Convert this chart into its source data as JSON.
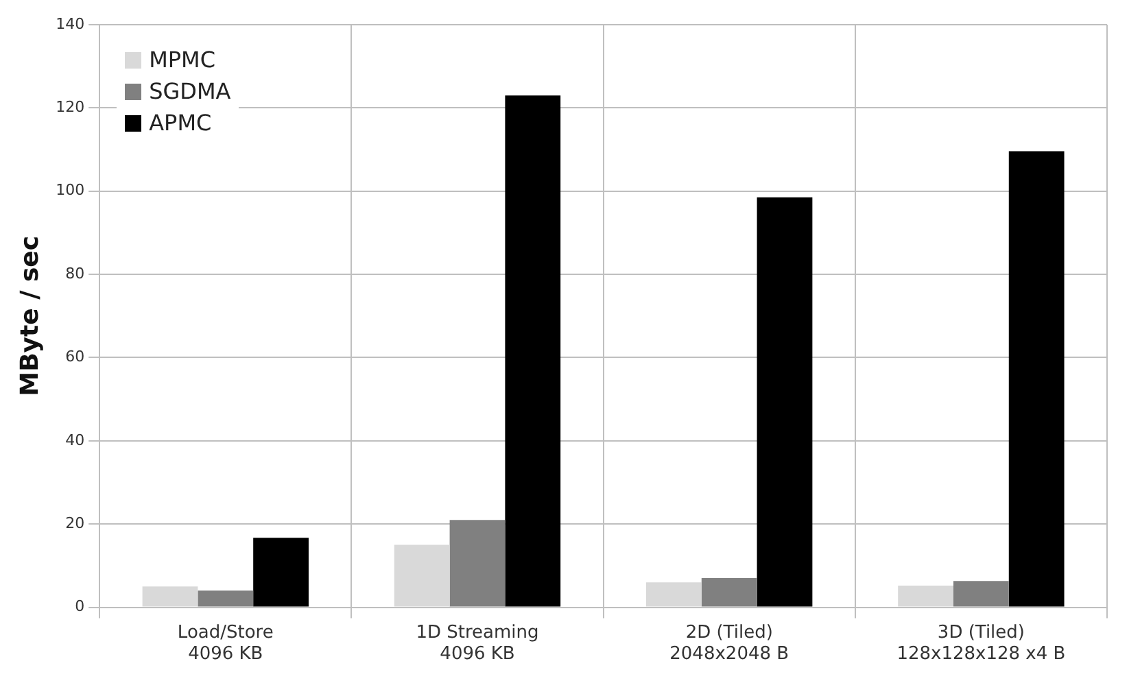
{
  "chart_data": {
    "type": "bar",
    "ylabel": "MByte / sec",
    "categories": [
      "Load/Store\n4096 KB",
      "1D Streaming\n4096 KB",
      "2D (Tiled)\n2048x2048 B",
      "3D (Tiled)\n128x128x128 x4 B"
    ],
    "series": [
      {
        "name": "MPMC",
        "color": "#d9d9d9",
        "values": [
          5,
          15,
          6,
          5.2
        ]
      },
      {
        "name": "SGDMA",
        "color": "#808080",
        "values": [
          4,
          21,
          7,
          6.3
        ]
      },
      {
        "name": "APMC",
        "color": "#000000",
        "values": [
          16.7,
          123,
          98.5,
          109.6
        ]
      }
    ],
    "ylim": [
      0,
      140
    ],
    "yticks": [
      0,
      20,
      40,
      60,
      80,
      100,
      120,
      140
    ],
    "grid": true,
    "legend": "top left"
  }
}
